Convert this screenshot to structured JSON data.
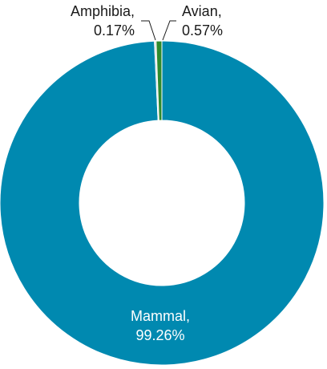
{
  "chart_data": {
    "type": "pie",
    "variant": "donut",
    "categories": [
      "Mammal",
      "Amphibia",
      "Avian"
    ],
    "values": [
      99.26,
      0.17,
      0.57
    ],
    "unit": "%",
    "data_labels": [
      {
        "name": "Mammal,",
        "value": "99.26%"
      },
      {
        "name": "Amphibia,",
        "value": "0.17%"
      },
      {
        "name": "Avian,",
        "value": "0.57%"
      }
    ],
    "colors": {
      "Mammal": "#0089b0",
      "Amphibia": "#d9d9d9",
      "Avian": "#2e8b2e"
    },
    "title": "",
    "legend": "none"
  }
}
